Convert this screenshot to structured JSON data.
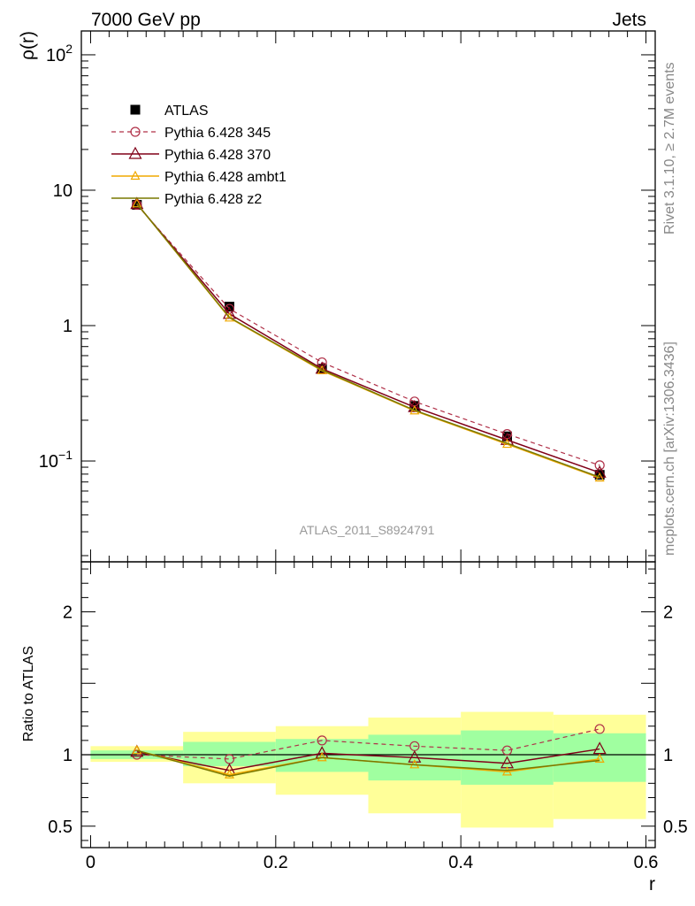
{
  "header": {
    "left": "7000 GeV pp",
    "right": "Jets"
  },
  "side_text": {
    "rivet": "Rivet 3.1.10, ≥ 2.7M events",
    "mcplots": "mcplots.cern.ch [arXiv:1306.3436]"
  },
  "analysis_label": "ATLAS_2011_S8924791",
  "colors": {
    "atlas": "#000000",
    "p345": "#b03048",
    "p370": "#800018",
    "ambt1": "#f0a800",
    "z2": "#787800",
    "band_inner": "#a0ffa0",
    "band_outer": "#ffff99"
  },
  "chart_data": [
    {
      "type": "line",
      "panel": "main",
      "ylabel": "ρ(r)",
      "yscale": "log",
      "xlim": [
        -0.01,
        0.61
      ],
      "ylim": [
        0.018,
        150
      ],
      "ytick_labels": [
        "10",
        "1"
      ],
      "ytick_labels_sup": [
        {
          "base": "10",
          "exp": "2"
        },
        {
          "base": "10",
          "exp": "−1"
        }
      ],
      "x": [
        0.05,
        0.15,
        0.25,
        0.35,
        0.45,
        0.55
      ],
      "series": [
        {
          "name": "ATLAS",
          "marker": "square-filled",
          "values": [
            7.8,
            1.38,
            0.48,
            0.255,
            0.152,
            0.079
          ]
        },
        {
          "name": "Pythia 6.428 345",
          "marker": "circle-open",
          "line": "dashed",
          "values": [
            7.8,
            1.33,
            0.535,
            0.275,
            0.158,
            0.093
          ]
        },
        {
          "name": "Pythia 6.428 370",
          "marker": "triangle-open",
          "values": [
            7.9,
            1.22,
            0.48,
            0.25,
            0.143,
            0.082
          ]
        },
        {
          "name": "Pythia 6.428 ambt1",
          "marker": "triangle-open-small",
          "values": [
            7.95,
            1.14,
            0.465,
            0.235,
            0.133,
            0.075
          ]
        },
        {
          "name": "Pythia 6.428 z2",
          "marker": "line",
          "values": [
            7.95,
            1.15,
            0.47,
            0.237,
            0.135,
            0.076
          ]
        }
      ]
    },
    {
      "type": "line",
      "panel": "ratio",
      "ylabel": "Ratio to ATLAS",
      "xlabel": "r",
      "xlim": [
        -0.01,
        0.61
      ],
      "ylim": [
        0.35,
        2.35
      ],
      "ytick_labels": [
        "2",
        "1",
        "0.5"
      ],
      "xtick_labels": [
        "0",
        "0.2",
        "0.4",
        "0.6"
      ],
      "bins": [
        {
          "lo": 0.0,
          "hi": 0.1,
          "inner": [
            0.97,
            1.03
          ],
          "outer": [
            0.95,
            1.06
          ]
        },
        {
          "lo": 0.1,
          "hi": 0.2,
          "inner": [
            0.92,
            1.09
          ],
          "outer": [
            0.8,
            1.16
          ]
        },
        {
          "lo": 0.2,
          "hi": 0.3,
          "inner": [
            0.88,
            1.11
          ],
          "outer": [
            0.72,
            1.2
          ]
        },
        {
          "lo": 0.3,
          "hi": 0.4,
          "inner": [
            0.82,
            1.14
          ],
          "outer": [
            0.59,
            1.26
          ]
        },
        {
          "lo": 0.4,
          "hi": 0.5,
          "inner": [
            0.79,
            1.17
          ],
          "outer": [
            0.49,
            1.3
          ]
        },
        {
          "lo": 0.5,
          "hi": 0.6,
          "inner": [
            0.81,
            1.15
          ],
          "outer": [
            0.55,
            1.28
          ]
        }
      ],
      "x": [
        0.05,
        0.15,
        0.25,
        0.35,
        0.45,
        0.55
      ],
      "series": [
        {
          "name": "Pythia 6.428 345",
          "values": [
            1.0,
            0.97,
            1.1,
            1.06,
            1.03,
            1.18
          ]
        },
        {
          "name": "Pythia 6.428 370",
          "values": [
            1.02,
            0.89,
            1.01,
            0.98,
            0.94,
            1.04
          ]
        },
        {
          "name": "Pythia 6.428 ambt1",
          "values": [
            1.03,
            0.86,
            0.98,
            0.93,
            0.88,
            0.97
          ]
        },
        {
          "name": "Pythia 6.428 z2",
          "values": [
            1.03,
            0.85,
            0.98,
            0.93,
            0.89,
            0.96
          ]
        }
      ]
    }
  ]
}
